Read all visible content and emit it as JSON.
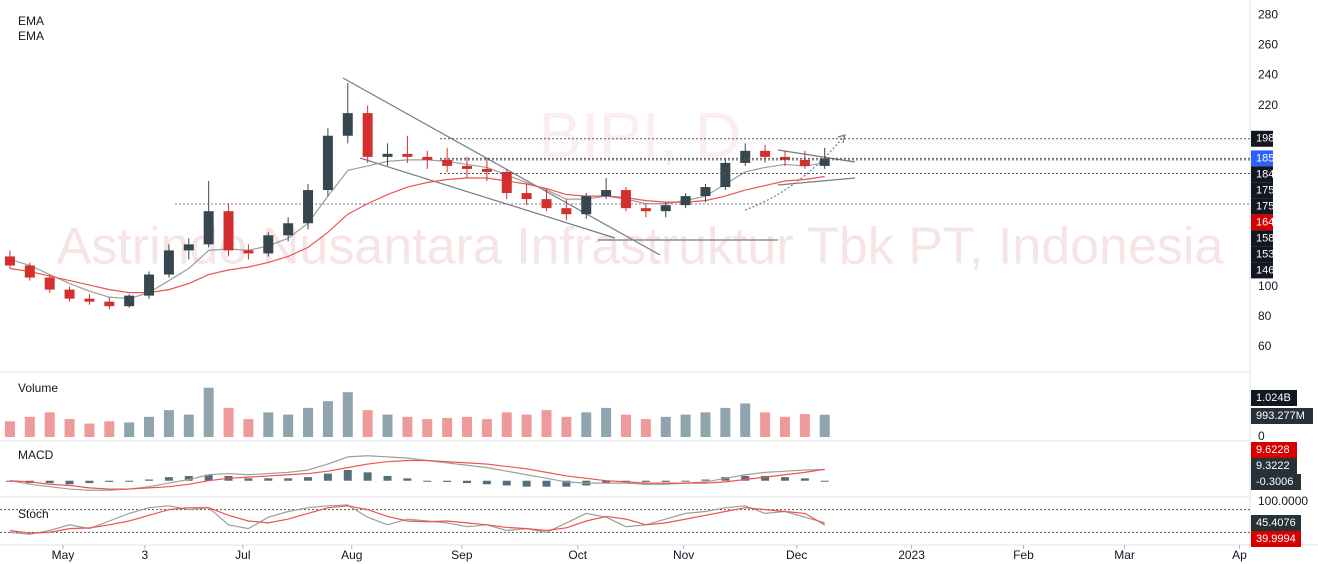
{
  "chart_data": [
    {
      "type": "candlestick",
      "watermark": "Astrindo Nusantara Infrastruktur Tbk PT, Indonesia",
      "symbol": "BIPI, D",
      "series": [
        {
          "name": "EMA",
          "color": "#9e9e9e",
          "values": [
            118,
            114,
            108,
            102,
            97,
            93,
            92,
            96,
            104,
            112,
            124,
            125,
            124,
            127,
            132,
            142,
            160,
            177,
            180,
            183,
            184,
            184,
            183,
            181,
            179,
            174,
            169,
            164,
            158,
            158,
            160,
            158,
            155,
            155,
            157,
            160,
            168,
            176,
            179,
            181,
            180,
            182
          ]
        },
        {
          "name": "EMA",
          "color": "#ef5350",
          "values": [
            112,
            110,
            107,
            104,
            101,
            98,
            96,
            96,
            98,
            102,
            108,
            111,
            113,
            116,
            120,
            126,
            136,
            148,
            155,
            161,
            166,
            169,
            171,
            172,
            172,
            170,
            168,
            165,
            161,
            160,
            160,
            159,
            157,
            156,
            156,
            157,
            160,
            164,
            167,
            170,
            171,
            173
          ]
        }
      ],
      "open": [
        120,
        114,
        106,
        98,
        92,
        90,
        87,
        94,
        108,
        124,
        128,
        150,
        124,
        122,
        134,
        142,
        164,
        200,
        215,
        186,
        188,
        186,
        184,
        180,
        178,
        176,
        162,
        158,
        152,
        148,
        160,
        164,
        152,
        150,
        154,
        160,
        166,
        182,
        190,
        186,
        184,
        180
      ],
      "high": [
        124,
        116,
        108,
        100,
        95,
        93,
        95,
        110,
        128,
        132,
        170,
        155,
        128,
        136,
        146,
        168,
        205,
        235,
        220,
        195,
        200,
        190,
        192,
        186,
        185,
        178,
        168,
        165,
        158,
        162,
        172,
        166,
        155,
        156,
        162,
        168,
        185,
        195,
        194,
        190,
        190,
        192
      ],
      "low": [
        112,
        104,
        96,
        90,
        88,
        85,
        86,
        92,
        106,
        118,
        126,
        120,
        118,
        120,
        130,
        138,
        160,
        195,
        182,
        180,
        182,
        178,
        176,
        172,
        170,
        158,
        154,
        150,
        144,
        145,
        158,
        150,
        146,
        146,
        152,
        156,
        164,
        180,
        182,
        180,
        178,
        178
      ],
      "close": [
        114,
        106,
        98,
        92,
        90,
        87,
        94,
        108,
        124,
        128,
        150,
        124,
        122,
        134,
        142,
        164,
        200,
        215,
        186,
        188,
        186,
        184,
        180,
        178,
        176,
        162,
        158,
        152,
        148,
        160,
        164,
        152,
        150,
        154,
        160,
        166,
        182,
        190,
        186,
        184,
        180,
        185
      ],
      "up_color": "#37474f",
      "down_color": "#d32f2f",
      "levels": [
        {
          "value": 198,
          "color": "#131722",
          "dotted": true
        },
        {
          "value": 185,
          "color": "#2962ff",
          "dotted": true
        },
        {
          "value": 184,
          "color": "#131722",
          "dotted": true
        },
        {
          "value": 175,
          "color": "#131722",
          "dotted": true
        },
        {
          "value": 175,
          "color": "#131722",
          "dotted": true
        },
        {
          "value": 164,
          "color": "#d50000",
          "dotted": false
        },
        {
          "value": 158,
          "color": "#131722",
          "dotted": false
        },
        {
          "value": 153,
          "color": "#131722",
          "dotted": false
        },
        {
          "value": 146,
          "color": "#131722",
          "dotted": false
        }
      ],
      "xlim": [
        -0.5,
        62.4
      ],
      "xticks": [
        {
          "value": 2.67,
          "label": "May"
        },
        {
          "value": 6.79,
          "label": "3"
        },
        {
          "value": 11.72,
          "label": "Jul"
        },
        {
          "value": 17.2,
          "label": "Aug"
        },
        {
          "value": 22.74,
          "label": "Sep"
        },
        {
          "value": 28.57,
          "label": "Oct"
        },
        {
          "value": 33.9,
          "label": "Nov"
        },
        {
          "value": 39.59,
          "label": "Dec"
        },
        {
          "value": 45.37,
          "label": "2023"
        },
        {
          "value": 51.0,
          "label": "Feb"
        },
        {
          "value": 56.09,
          "label": "Mar"
        },
        {
          "value": 61.87,
          "label": "Ap"
        }
      ],
      "ylim": [
        52,
        290
      ],
      "yticks": [
        280,
        260,
        240,
        220,
        100,
        80,
        60
      ]
    },
    {
      "type": "bar",
      "title": "Volume",
      "values": [
        700000000,
        900000000,
        1100000000,
        800000000,
        600000000,
        700000000,
        650000000,
        900000000,
        1200000000,
        1000000000,
        2200000000,
        1300000000,
        800000000,
        1100000000,
        1000000000,
        1300000000,
        1600000000,
        2000000000,
        1200000000,
        1000000000,
        900000000,
        800000000,
        850000000,
        900000000,
        800000000,
        1100000000,
        1000000000,
        1200000000,
        900000000,
        1100000000,
        1300000000,
        1000000000,
        800000000,
        900000000,
        1000000000,
        1100000000,
        1300000000,
        1500000000,
        1100000000,
        900000000,
        1024000000,
        993277000
      ],
      "ma_label": {
        "value": 1024000000,
        "label": "1.024B"
      },
      "last_label": {
        "value": 993277000,
        "label": "993.277M"
      },
      "ylim": [
        0,
        2500000000
      ],
      "yticks": [
        0
      ]
    },
    {
      "type": "line",
      "title": "MACD",
      "series": [
        {
          "color": "#9e9e9e",
          "values": [
            0,
            -3,
            -5,
            -7,
            -8,
            -8,
            -7,
            -5,
            -2,
            1,
            5,
            6,
            5,
            6,
            7,
            9,
            14,
            20,
            21,
            20,
            19,
            17,
            15,
            13,
            11,
            8,
            5,
            2,
            -1,
            -2,
            -2,
            -2,
            -3,
            -3,
            -2,
            -1,
            2,
            5,
            7,
            8,
            9,
            9.3222
          ]
        },
        {
          "color": "#ef5350",
          "values": [
            0,
            -1,
            -3,
            -4,
            -6,
            -7,
            -7,
            -6,
            -5,
            -3,
            0,
            2,
            3,
            4,
            5,
            6,
            8,
            11,
            14,
            16,
            17,
            17,
            16,
            15,
            14,
            12,
            10,
            7,
            4,
            2,
            0,
            -1,
            -2,
            -2,
            -2,
            -2,
            -1,
            1,
            3,
            5,
            7,
            9.6228
          ]
        }
      ],
      "histogram": {
        "color": "#546e7a",
        "values": [
          0,
          -2,
          -2,
          -3,
          -2,
          -1,
          0,
          1,
          3,
          4,
          5,
          4,
          2,
          2,
          2,
          3,
          6,
          9,
          7,
          4,
          2,
          0,
          -1,
          -2,
          -3,
          -4,
          -5,
          -5,
          -5,
          -4,
          -2,
          -1,
          -1,
          -1,
          0,
          1,
          3,
          4,
          4,
          3,
          2,
          -0.3006
        ]
      },
      "ylim": [
        -12,
        30
      ]
    },
    {
      "type": "line",
      "title": "Stoch",
      "series": [
        {
          "color": "#9e9e9e",
          "values": [
            20,
            15,
            25,
            40,
            30,
            50,
            70,
            85,
            90,
            80,
            85,
            40,
            30,
            60,
            75,
            85,
            90,
            92,
            60,
            40,
            55,
            50,
            45,
            35,
            40,
            25,
            30,
            20,
            45,
            70,
            60,
            35,
            40,
            55,
            70,
            75,
            85,
            90,
            70,
            75,
            60,
            45.4076
          ]
        },
        {
          "color": "#ef5350",
          "values": [
            25,
            18,
            20,
            30,
            32,
            40,
            50,
            65,
            80,
            85,
            85,
            65,
            50,
            45,
            55,
            70,
            85,
            90,
            80,
            62,
            50,
            48,
            50,
            45,
            40,
            33,
            30,
            25,
            32,
            50,
            62,
            55,
            40,
            45,
            55,
            65,
            75,
            85,
            80,
            75,
            70,
            39.9994
          ]
        }
      ],
      "bands": [
        80,
        20
      ],
      "ylim": [
        0,
        100
      ],
      "yticks": [
        {
          "value": 100,
          "label": "100.0000"
        }
      ]
    }
  ]
}
